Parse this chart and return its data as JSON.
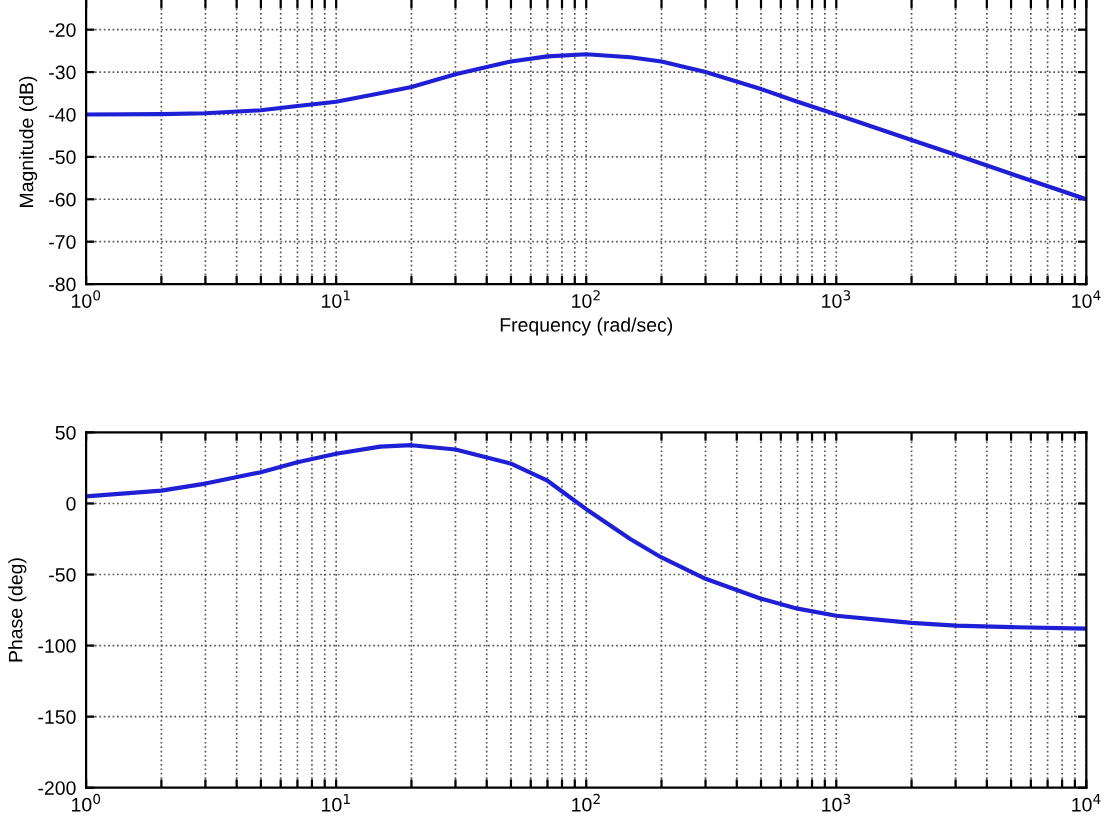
{
  "chart_data": [
    {
      "type": "line",
      "xlabel": "Frequency (rad/sec)",
      "ylabel": "Magnitude (dB)",
      "log": "x",
      "grid": true,
      "line_style": "solid",
      "xlim": [
        1,
        10000
      ],
      "ylim": [
        -80,
        -13
      ],
      "xticks": [
        {
          "value": 1,
          "label": "10$^{0}$"
        },
        {
          "value": 2,
          "label": null
        },
        {
          "value": 3,
          "label": null
        },
        {
          "value": 4,
          "label": null
        },
        {
          "value": 5,
          "label": null
        },
        {
          "value": 6,
          "label": null
        },
        {
          "value": 7,
          "label": null
        },
        {
          "value": 8,
          "label": null
        },
        {
          "value": 9,
          "label": null
        },
        {
          "value": 10,
          "label": "10$^{1}$"
        },
        {
          "value": 20,
          "label": null
        },
        {
          "value": 30,
          "label": null
        },
        {
          "value": 40,
          "label": null
        },
        {
          "value": 50,
          "label": null
        },
        {
          "value": 60,
          "label": null
        },
        {
          "value": 70,
          "label": null
        },
        {
          "value": 80,
          "label": null
        },
        {
          "value": 90,
          "label": null
        },
        {
          "value": 100,
          "label": "10$^{2}$"
        },
        {
          "value": 200,
          "label": null
        },
        {
          "value": 300,
          "label": null
        },
        {
          "value": 400,
          "label": null
        },
        {
          "value": 500,
          "label": null
        },
        {
          "value": 600,
          "label": null
        },
        {
          "value": 700,
          "label": null
        },
        {
          "value": 800,
          "label": null
        },
        {
          "value": 900,
          "label": null
        },
        {
          "value": 1000,
          "label": "10$^{3}$"
        },
        {
          "value": 2000,
          "label": null
        },
        {
          "value": 3000,
          "label": null
        },
        {
          "value": 4000,
          "label": null
        },
        {
          "value": 5000,
          "label": null
        },
        {
          "value": 6000,
          "label": null
        },
        {
          "value": 7000,
          "label": null
        },
        {
          "value": 8000,
          "label": null
        },
        {
          "value": 9000,
          "label": null
        },
        {
          "value": 10000,
          "label": "10$^{4}$"
        }
      ],
      "yticks": [
        -80,
        -70,
        -60,
        -50,
        -40,
        -30,
        -20
      ],
      "x": [
        1,
        2,
        3,
        5,
        7,
        10,
        15,
        20,
        30,
        50,
        70,
        100,
        150,
        200,
        300,
        500,
        700,
        1000,
        2000,
        3000,
        5000,
        10000
      ],
      "series": [
        {
          "color": "#1f1fd6",
          "values": [
            -40,
            -39.9,
            -39.7,
            -39,
            -38,
            -37,
            -35,
            -33.5,
            -30.5,
            -27.5,
            -26.3,
            -25.8,
            -26.5,
            -27.5,
            -30,
            -34,
            -37,
            -40,
            -46,
            -49.5,
            -54,
            -60
          ]
        }
      ]
    },
    {
      "type": "line",
      "ylabel": "Phase (deg)",
      "log": "x",
      "grid": true,
      "line_style": "solid",
      "xlim": [
        1,
        10000
      ],
      "ylim": [
        -200,
        50
      ],
      "xticks": [
        {
          "value": 1,
          "label": "10$^{0}$"
        },
        {
          "value": 2,
          "label": null
        },
        {
          "value": 3,
          "label": null
        },
        {
          "value": 4,
          "label": null
        },
        {
          "value": 5,
          "label": null
        },
        {
          "value": 6,
          "label": null
        },
        {
          "value": 7,
          "label": null
        },
        {
          "value": 8,
          "label": null
        },
        {
          "value": 9,
          "label": null
        },
        {
          "value": 10,
          "label": "10$^{1}$"
        },
        {
          "value": 20,
          "label": null
        },
        {
          "value": 30,
          "label": null
        },
        {
          "value": 40,
          "label": null
        },
        {
          "value": 50,
          "label": null
        },
        {
          "value": 60,
          "label": null
        },
        {
          "value": 70,
          "label": null
        },
        {
          "value": 80,
          "label": null
        },
        {
          "value": 90,
          "label": null
        },
        {
          "value": 100,
          "label": "10$^{2}$"
        },
        {
          "value": 200,
          "label": null
        },
        {
          "value": 300,
          "label": null
        },
        {
          "value": 400,
          "label": null
        },
        {
          "value": 500,
          "label": null
        },
        {
          "value": 600,
          "label": null
        },
        {
          "value": 700,
          "label": null
        },
        {
          "value": 800,
          "label": null
        },
        {
          "value": 900,
          "label": null
        },
        {
          "value": 1000,
          "label": "10$^{3}$"
        },
        {
          "value": 2000,
          "label": null
        },
        {
          "value": 3000,
          "label": null
        },
        {
          "value": 4000,
          "label": null
        },
        {
          "value": 5000,
          "label": null
        },
        {
          "value": 6000,
          "label": null
        },
        {
          "value": 7000,
          "label": null
        },
        {
          "value": 8000,
          "label": null
        },
        {
          "value": 9000,
          "label": null
        },
        {
          "value": 10000,
          "label": "10$^{4}$"
        }
      ],
      "yticks": [
        -200,
        -150,
        -100,
        -50,
        0,
        50
      ],
      "x": [
        1,
        2,
        3,
        5,
        7,
        10,
        15,
        20,
        30,
        50,
        70,
        100,
        150,
        200,
        300,
        500,
        700,
        1000,
        2000,
        3000,
        5000,
        10000
      ],
      "series": [
        {
          "color": "#1f1fd6",
          "values": [
            5,
            9,
            14,
            22,
            29,
            35,
            40,
            41,
            38,
            28,
            16,
            -4,
            -25,
            -38,
            -53,
            -67,
            -74,
            -79,
            -84,
            -86,
            -87,
            -88
          ]
        }
      ]
    }
  ]
}
